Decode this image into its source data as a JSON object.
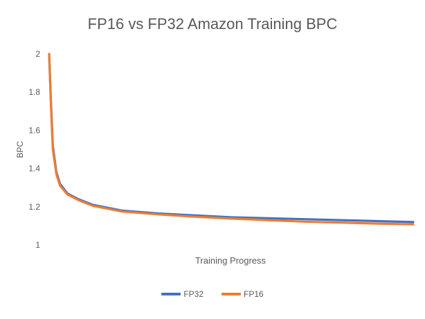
{
  "chart_data": {
    "type": "line",
    "title": "FP16 vs FP32 Amazon Training BPC",
    "xlabel": "Training Progress",
    "ylabel": "BPC",
    "ylim": [
      1,
      2
    ],
    "yticks": [
      "1",
      "1.2",
      "1.4",
      "1.6",
      "1.8",
      "2"
    ],
    "xlim": [
      0,
      1
    ],
    "grid": false,
    "legend": "bottom",
    "series": [
      {
        "name": "FP32",
        "color": "#4472c4",
        "x": [
          0,
          0.005,
          0.01,
          0.02,
          0.03,
          0.05,
          0.08,
          0.12,
          0.16,
          0.2,
          0.3,
          0.4,
          0.5,
          0.6,
          0.7,
          0.8,
          0.9,
          1.0
        ],
        "y": [
          2.0,
          1.75,
          1.52,
          1.38,
          1.32,
          1.27,
          1.24,
          1.21,
          1.195,
          1.18,
          1.165,
          1.155,
          1.145,
          1.14,
          1.135,
          1.13,
          1.125,
          1.12
        ]
      },
      {
        "name": "FP16",
        "color": "#ed7d31",
        "x": [
          0,
          0.005,
          0.01,
          0.02,
          0.03,
          0.05,
          0.08,
          0.12,
          0.16,
          0.2,
          0.3,
          0.4,
          0.5,
          0.6,
          0.7,
          0.8,
          0.9,
          1.0
        ],
        "y": [
          2.0,
          1.73,
          1.5,
          1.37,
          1.31,
          1.265,
          1.235,
          1.205,
          1.19,
          1.175,
          1.16,
          1.148,
          1.138,
          1.13,
          1.122,
          1.117,
          1.112,
          1.108
        ]
      }
    ]
  }
}
